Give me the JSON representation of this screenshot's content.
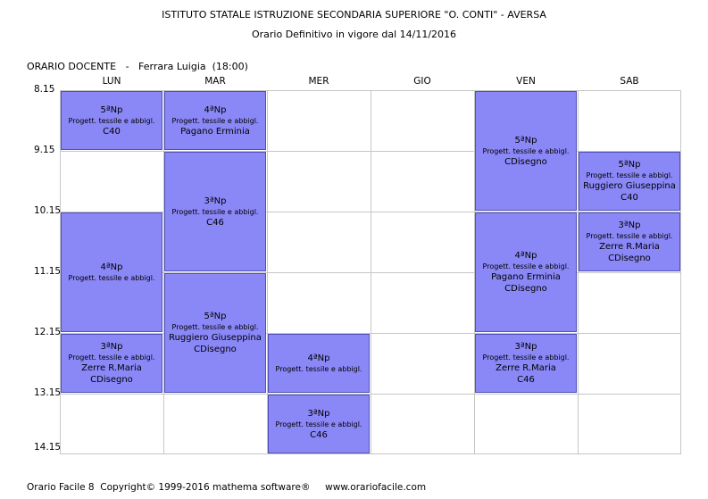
{
  "header": {
    "title": "ISTITUTO STATALE ISTRUZIONE SECONDARIA SUPERIORE \"O. CONTI\" - AVERSA",
    "subtitle": "Orario Definitivo in vigore dal 14/11/2016"
  },
  "teacher_line": "ORARIO DOCENTE   -   Ferrara Luigia  (18:00)",
  "days": [
    "LUN",
    "MAR",
    "MER",
    "GIO",
    "VEN",
    "SAB"
  ],
  "times": [
    "8.15",
    "9.15",
    "10.15",
    "11.15",
    "12.15",
    "13.15",
    "14.15"
  ],
  "lessons": [
    {
      "day": 0,
      "start": 0,
      "span": 1,
      "cls": "5ªNp",
      "subject": "Progett. tessile e abbigl.",
      "lines": [
        "C40"
      ]
    },
    {
      "day": 0,
      "start": 2,
      "span": 2,
      "cls": "4ªNp",
      "subject": "Progett. tessile e abbigl.",
      "lines": []
    },
    {
      "day": 0,
      "start": 4,
      "span": 1,
      "cls": "3ªNp",
      "subject": "Progett. tessile e abbigl.",
      "lines": [
        "Zerre R.Maria",
        "CDisegno"
      ]
    },
    {
      "day": 1,
      "start": 0,
      "span": 1,
      "cls": "4ªNp",
      "subject": "Progett. tessile e abbigl.",
      "lines": [
        "Pagano Erminia"
      ]
    },
    {
      "day": 1,
      "start": 1,
      "span": 2,
      "cls": "3ªNp",
      "subject": "Progett. tessile e abbigl.",
      "lines": [
        "C46"
      ]
    },
    {
      "day": 1,
      "start": 3,
      "span": 2,
      "cls": "5ªNp",
      "subject": "Progett. tessile e abbigl.",
      "lines": [
        "Ruggiero Giuseppina",
        "CDisegno"
      ]
    },
    {
      "day": 2,
      "start": 4,
      "span": 1,
      "cls": "4ªNp",
      "subject": "Progett. tessile e abbigl.",
      "lines": []
    },
    {
      "day": 2,
      "start": 5,
      "span": 1,
      "cls": "3ªNp",
      "subject": "Progett. tessile e abbigl.",
      "lines": [
        "C46"
      ]
    },
    {
      "day": 4,
      "start": 0,
      "span": 2,
      "cls": "5ªNp",
      "subject": "Progett. tessile e abbigl.",
      "lines": [
        "CDisegno"
      ]
    },
    {
      "day": 4,
      "start": 2,
      "span": 2,
      "cls": "4ªNp",
      "subject": "Progett. tessile e abbigl.",
      "lines": [
        "Pagano Erminia",
        "CDisegno"
      ]
    },
    {
      "day": 4,
      "start": 4,
      "span": 1,
      "cls": "3ªNp",
      "subject": "Progett. tessile e abbigl.",
      "lines": [
        "Zerre R.Maria",
        "C46"
      ]
    },
    {
      "day": 5,
      "start": 1,
      "span": 1,
      "cls": "5ªNp",
      "subject": "Progett. tessile e abbigl.",
      "lines": [
        "Ruggiero Giuseppina",
        "C40"
      ]
    },
    {
      "day": 5,
      "start": 2,
      "span": 1,
      "cls": "3ªNp",
      "subject": "Progett. tessile e abbigl.",
      "lines": [
        "Zerre R.Maria",
        "CDisegno"
      ]
    }
  ],
  "footer": "Orario Facile 8  Copyright© 1999-2016 mathema software®     www.orariofacile.com"
}
